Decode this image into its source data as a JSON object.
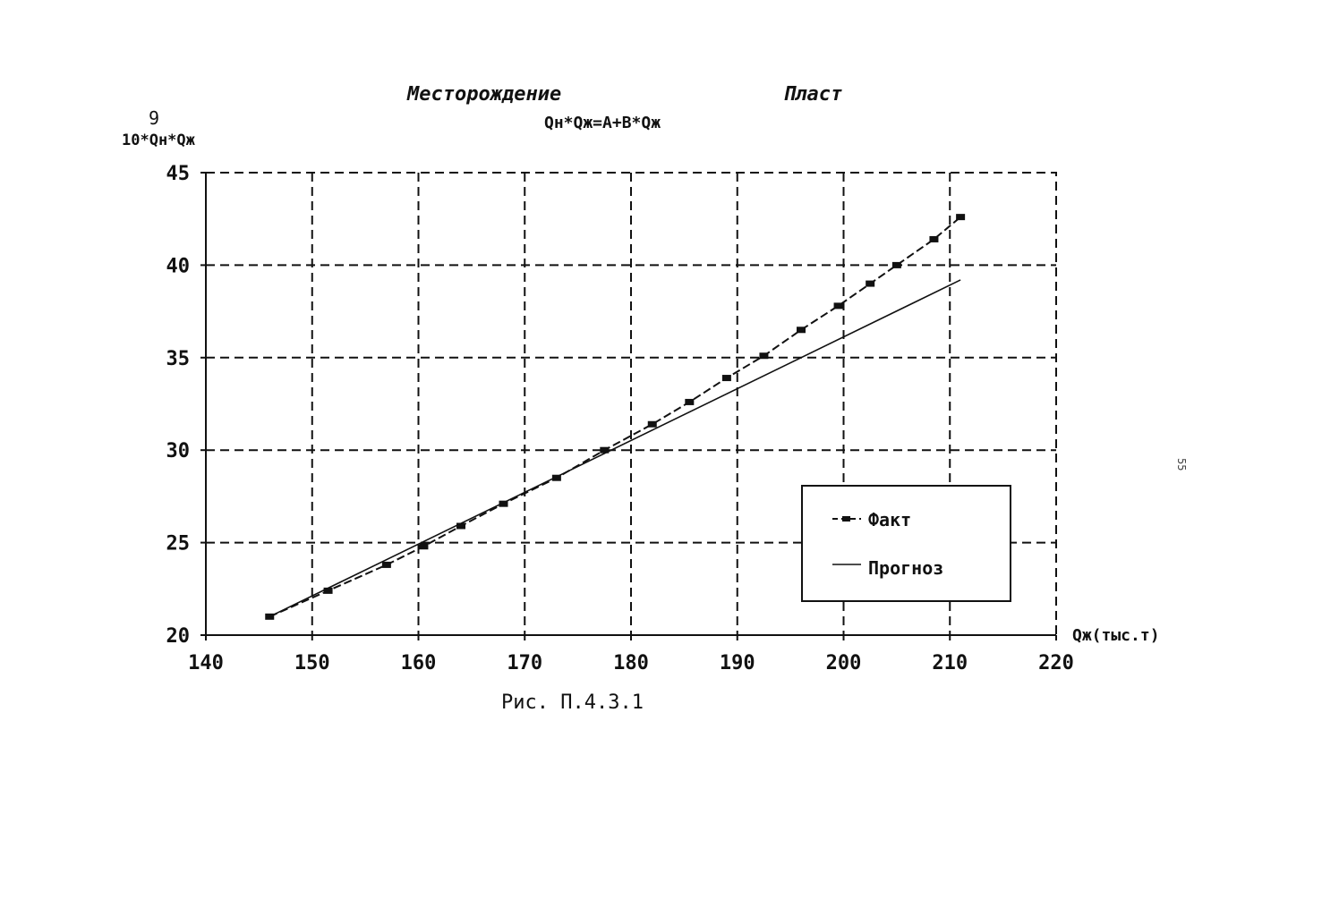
{
  "header": {
    "field_label": "Месторождение",
    "layer_label": "Пласт",
    "equation": "Qн*Qж=A+B*Qж"
  },
  "y_axis": {
    "exponent": "9",
    "label": "10*Qн*Qж"
  },
  "x_axis": {
    "label": "Qж(тыс.т)"
  },
  "caption": "Рис. П.4.3.1",
  "page_number": "55",
  "legend": {
    "fact": "Факт",
    "forecast": "Прогноз"
  },
  "chart_data": {
    "type": "line",
    "title": "Qн*Qж=A+B*Qж",
    "xlabel": "Qж(тыс.т)",
    "ylabel": "10*Qн*Qж",
    "xlim": [
      140,
      220
    ],
    "ylim": [
      20,
      45
    ],
    "x_ticks": [
      140,
      150,
      160,
      170,
      180,
      190,
      200,
      210,
      220
    ],
    "y_ticks": [
      20,
      25,
      30,
      35,
      40,
      45
    ],
    "grid": true,
    "legend_position": "lower-right",
    "series": [
      {
        "name": "Факт",
        "style": "dashed-with-markers",
        "x": [
          146,
          151.5,
          157,
          160.5,
          164,
          168,
          173,
          177.5,
          182,
          185.5,
          189,
          192.5,
          196,
          199.5,
          202.5,
          205,
          208.5,
          211
        ],
        "y": [
          21.0,
          22.4,
          23.8,
          24.8,
          25.9,
          27.1,
          28.5,
          30.0,
          31.4,
          32.6,
          33.9,
          35.1,
          36.5,
          37.8,
          39.0,
          40.0,
          41.4,
          42.6
        ]
      },
      {
        "name": "Прогноз",
        "style": "solid",
        "x": [
          146,
          211
        ],
        "y": [
          21.0,
          39.2
        ]
      }
    ]
  }
}
